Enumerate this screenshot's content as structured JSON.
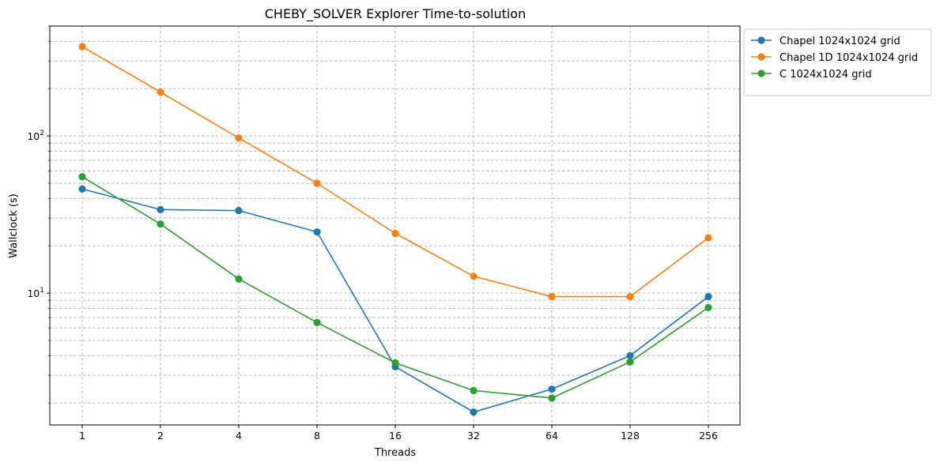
{
  "chart_data": {
    "type": "line",
    "title": "CHEBY_SOLVER Explorer Time-to-solution",
    "xlabel": "Threads",
    "ylabel": "Wallclock (s)",
    "x_scale": "log2",
    "y_scale": "log10",
    "ylim": [
      1.45,
      500
    ],
    "grid": true,
    "legend_position": "outside-top-right",
    "categories": [
      "1",
      "2",
      "4",
      "8",
      "16",
      "32",
      "64",
      "128",
      "256"
    ],
    "y_tick_labels": [
      "10^1",
      "10^2"
    ],
    "series": [
      {
        "name": "Chapel 1024x1024 grid",
        "color": "#1f77b4",
        "values": [
          46,
          34,
          33.5,
          24.5,
          3.4,
          1.75,
          2.45,
          4.0,
          9.5
        ]
      },
      {
        "name": "Chapel 1D 1024x1024 grid",
        "color": "#ff7f0e",
        "values": [
          370,
          190,
          97,
          50,
          24,
          12.8,
          9.5,
          9.5,
          22.5
        ]
      },
      {
        "name": "C 1024x1024 grid",
        "color": "#2ca02c",
        "values": [
          55,
          27.5,
          12.3,
          6.5,
          3.6,
          2.4,
          2.15,
          3.65,
          8.1
        ]
      }
    ]
  }
}
